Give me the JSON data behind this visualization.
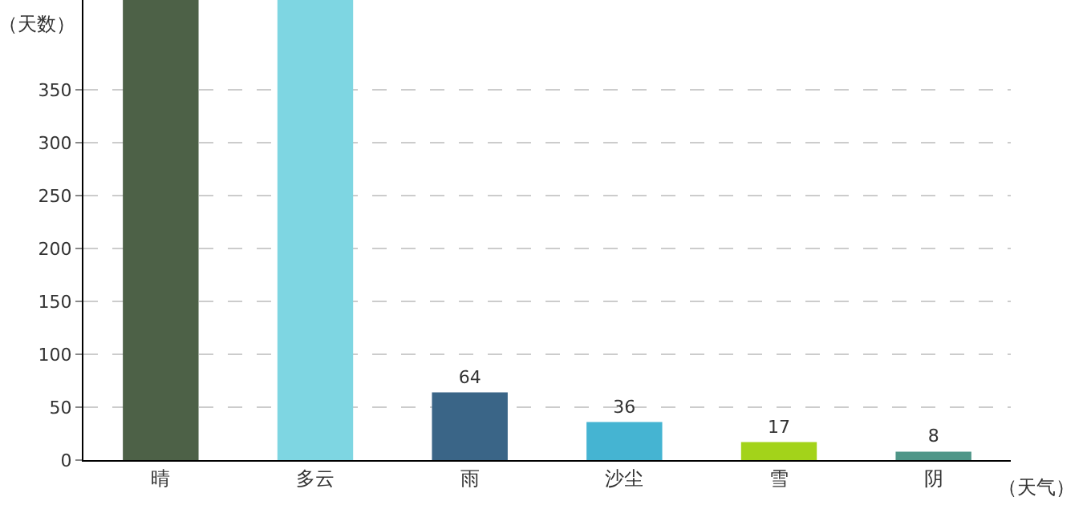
{
  "chart_data": {
    "type": "bar",
    "xlabel": "（天气）",
    "ylabel": "（天数）",
    "categories": [
      "晴",
      "多云",
      "雨",
      "沙尘",
      "雪",
      "阴"
    ],
    "values": [
      435,
      435,
      64,
      36,
      17,
      8
    ],
    "colors": [
      "#4d6147",
      "#7ed6e2",
      "#3a6587",
      "#45b4d2",
      "#a3d31a",
      "#4f9688"
    ],
    "value_labels": [
      null,
      null,
      "64",
      "36",
      "17",
      "8"
    ],
    "ylim": [
      0,
      435
    ],
    "yticks": [
      0,
      50,
      100,
      150,
      200,
      250,
      300,
      350
    ],
    "grid": "y",
    "legend": false
  }
}
